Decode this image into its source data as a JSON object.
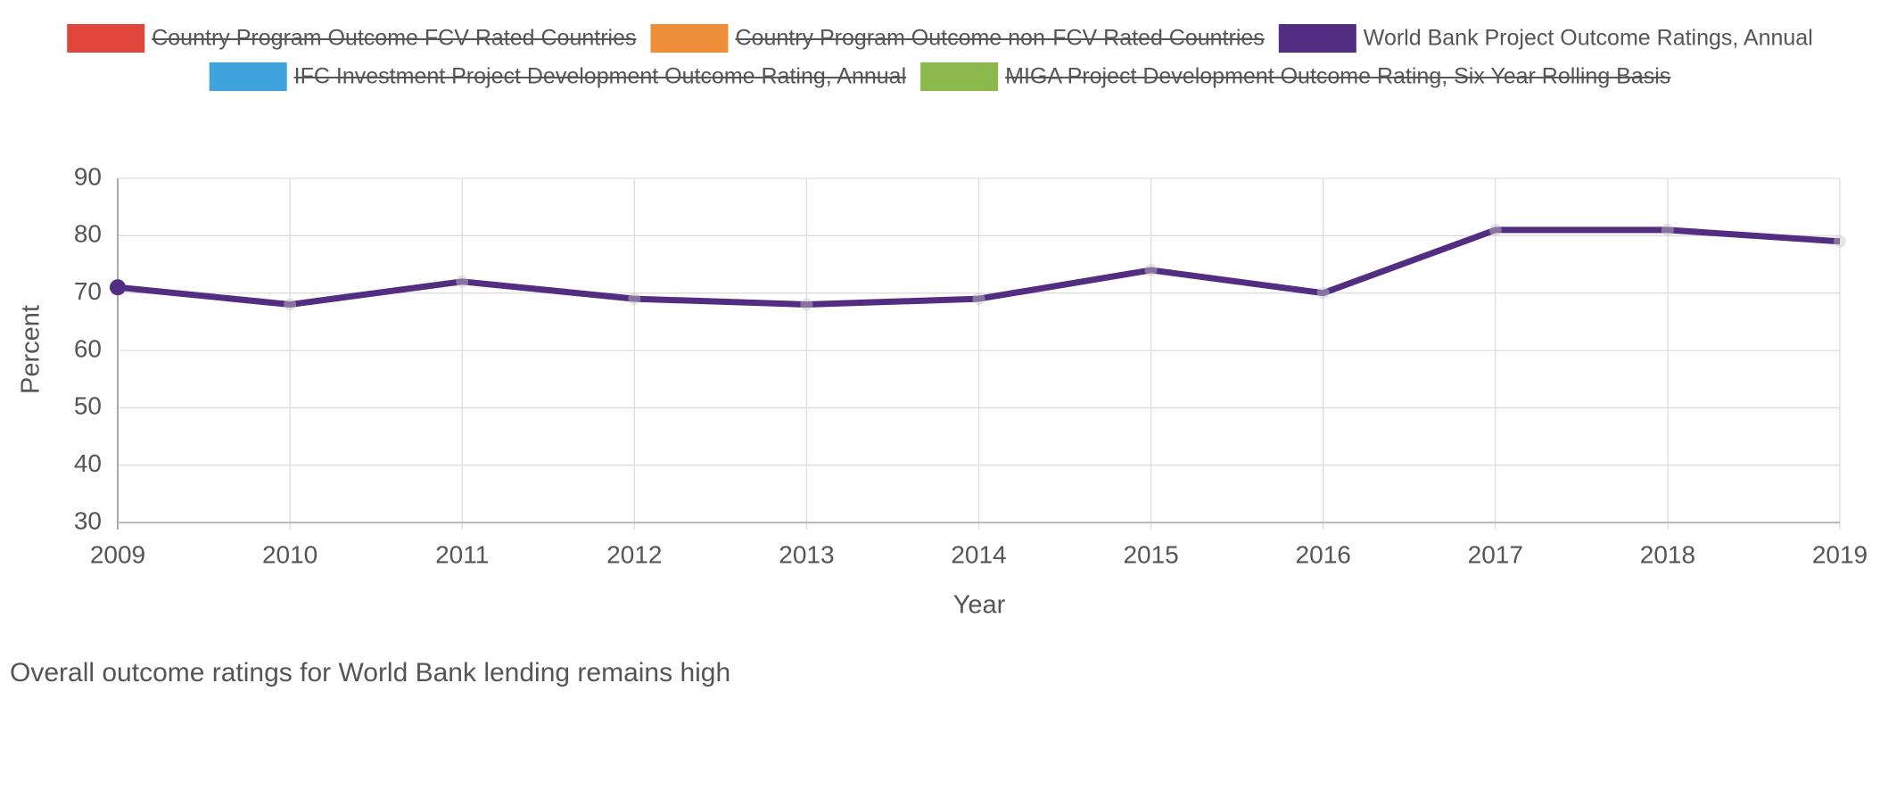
{
  "chart_data": {
    "type": "line",
    "x_label": "Year",
    "y_label": "Percent",
    "caption": "Overall outcome ratings for World Bank lending remains high",
    "x": [
      2009,
      2010,
      2011,
      2012,
      2013,
      2014,
      2015,
      2016,
      2017,
      2018,
      2019
    ],
    "series": [
      {
        "name": "Country Program Outcome FCV Rated Countries",
        "color": "#e0473a",
        "hidden": true
      },
      {
        "name": "Country Program Outcome non-FCV Rated Countries",
        "color": "#ee8e39",
        "hidden": true
      },
      {
        "name": "World Bank Project Outcome Ratings, Annual",
        "color": "#532d82",
        "values": [
          71,
          68,
          72,
          69,
          68,
          69,
          74,
          70,
          81,
          81,
          79
        ]
      },
      {
        "name": "IFC Investment Project Development Outcome Rating, Annual",
        "color": "#3fa4dc",
        "hidden": true
      },
      {
        "name": "MIGA Project Development Outcome Rating, Six Year Rolling Basis",
        "color": "#8bb94c",
        "hidden": true
      }
    ],
    "xlim": [
      2009,
      2019
    ],
    "xticks": [
      2009,
      2010,
      2011,
      2012,
      2013,
      2014,
      2015,
      2016,
      2017,
      2018,
      2019
    ],
    "ylim": [
      30,
      90
    ],
    "yticks": [
      30,
      40,
      50,
      60,
      70,
      80,
      90
    ],
    "grid": true,
    "legend": "top"
  }
}
